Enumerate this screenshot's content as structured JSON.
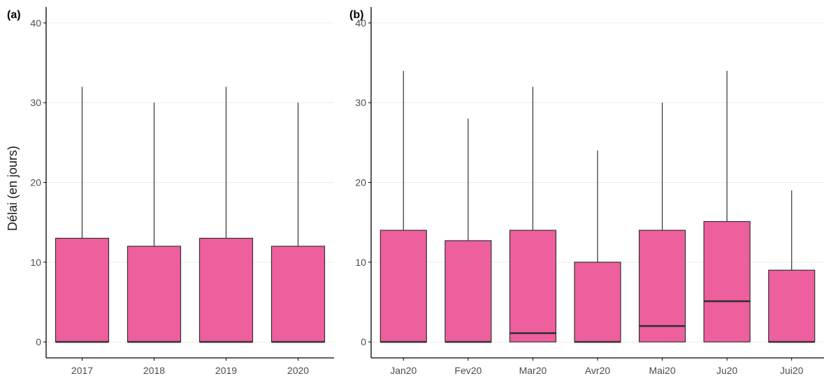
{
  "chart_data": [
    {
      "type": "box",
      "panel_label": "(a)",
      "categories": [
        "2017",
        "2018",
        "2019",
        "2020"
      ],
      "ylabel": "Délai (en jours)",
      "ylim": [
        -2,
        42
      ],
      "yticks": [
        0,
        10,
        20,
        30,
        40
      ],
      "ytick_labels": [
        "0",
        "10",
        "20",
        "30",
        "40"
      ],
      "grid": "horizontal",
      "boxes": [
        {
          "lower": 0,
          "q1": 0,
          "median": 0,
          "q3": 13,
          "upper": 32
        },
        {
          "lower": 0,
          "q1": 0,
          "median": 0,
          "q3": 12,
          "upper": 30
        },
        {
          "lower": 0,
          "q1": 0,
          "median": 0,
          "q3": 13,
          "upper": 32
        },
        {
          "lower": 0,
          "q1": 0,
          "median": 0,
          "q3": 12,
          "upper": 30
        }
      ]
    },
    {
      "type": "box",
      "panel_label": "(b)",
      "categories": [
        "Jan20",
        "Fev20",
        "Mar20",
        "Avr20",
        "Mai20",
        "Ju20",
        "Jui20"
      ],
      "ylabel": "",
      "ylim": [
        -2,
        42
      ],
      "yticks": [
        0,
        10,
        20,
        30,
        40
      ],
      "ytick_labels": [
        "0",
        "10",
        "20",
        "30",
        "40"
      ],
      "grid": "horizontal",
      "boxes": [
        {
          "lower": 0,
          "q1": 0,
          "median": 0,
          "q3": 14,
          "upper": 34
        },
        {
          "lower": 0,
          "q1": 0,
          "median": 0,
          "q3": 12.7,
          "upper": 28
        },
        {
          "lower": 0,
          "q1": 0,
          "median": 1.1,
          "q3": 14,
          "upper": 32
        },
        {
          "lower": 0,
          "q1": 0,
          "median": 0,
          "q3": 10,
          "upper": 24
        },
        {
          "lower": 0,
          "q1": 0,
          "median": 2,
          "q3": 14,
          "upper": 30
        },
        {
          "lower": 0,
          "q1": 0,
          "median": 5.1,
          "q3": 15.1,
          "upper": 34
        },
        {
          "lower": 0,
          "q1": 0,
          "median": 0,
          "q3": 9,
          "upper": 19
        }
      ]
    }
  ],
  "colors": {
    "box_fill": "#ee5f9d",
    "box_stroke": "#333333",
    "median": "#333333",
    "grid": "#ebebeb",
    "axis": "#000000",
    "tick_text": "#4d4d4d",
    "label_text": "#1a1a1a"
  }
}
